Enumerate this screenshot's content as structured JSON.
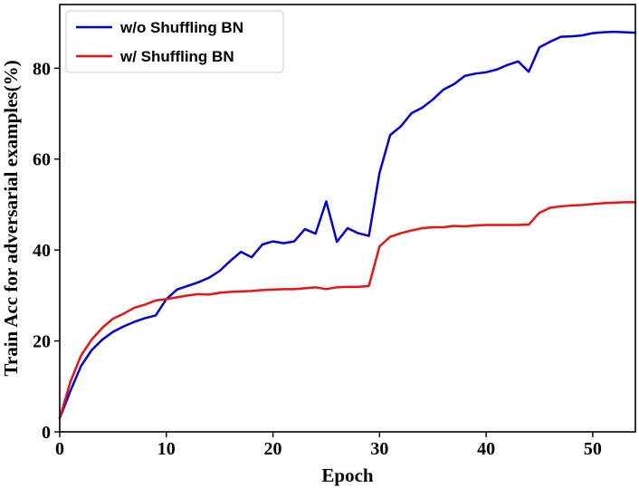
{
  "chart_data": {
    "type": "line",
    "title": "",
    "xlabel": "Epoch",
    "ylabel": "Train Acc for adversarial examples(%)",
    "xlim": [
      0,
      54
    ],
    "ylim": [
      0,
      94
    ],
    "xticks": [
      0,
      10,
      20,
      30,
      40,
      50
    ],
    "yticks": [
      0,
      20,
      40,
      60,
      80
    ],
    "xtick_labels": [
      "0",
      "10",
      "20",
      "30",
      "40",
      "50"
    ],
    "ytick_labels": [
      "0",
      "20",
      "40",
      "60",
      "80"
    ],
    "grid": false,
    "legend_position": "top-left",
    "x": [
      0,
      1,
      2,
      3,
      4,
      5,
      6,
      7,
      8,
      9,
      10,
      11,
      12,
      13,
      14,
      15,
      16,
      17,
      18,
      19,
      20,
      21,
      22,
      23,
      24,
      25,
      26,
      27,
      28,
      29,
      30,
      31,
      32,
      33,
      34,
      35,
      36,
      37,
      38,
      39,
      40,
      41,
      42,
      43,
      44,
      45,
      46,
      47,
      48,
      49,
      50,
      51,
      52,
      53,
      54
    ],
    "series": [
      {
        "name": "w/o Shuffling BN",
        "color": "#0000e6",
        "values": [
          3.0,
          9.0,
          14.5,
          18.0,
          20.3,
          22.0,
          23.2,
          24.2,
          25.0,
          25.6,
          29.2,
          31.3,
          32.1,
          32.9,
          33.9,
          35.4,
          37.6,
          39.6,
          38.4,
          41.2,
          41.9,
          41.5,
          41.9,
          44.6,
          43.6,
          50.7,
          41.8,
          44.8,
          43.7,
          43.1,
          57.0,
          65.3,
          67.2,
          70.1,
          71.3,
          73.1,
          75.3,
          76.5,
          78.3,
          78.8,
          79.1,
          79.7,
          80.7,
          81.5,
          79.2,
          84.6,
          85.8,
          86.9,
          87.0,
          87.2,
          87.7,
          87.9,
          88.0,
          87.9,
          87.8
        ]
      },
      {
        "name": "w/ Shuffling BN",
        "color": "#ee1111",
        "values": [
          3.0,
          11.0,
          16.8,
          20.3,
          22.9,
          24.9,
          26.0,
          27.3,
          28.0,
          28.9,
          29.2,
          29.6,
          30.0,
          30.3,
          30.2,
          30.6,
          30.8,
          30.9,
          31.0,
          31.2,
          31.3,
          31.4,
          31.4,
          31.6,
          31.8,
          31.4,
          31.8,
          31.9,
          31.9,
          32.1,
          40.8,
          42.9,
          43.7,
          44.3,
          44.8,
          45.0,
          45.0,
          45.3,
          45.2,
          45.4,
          45.5,
          45.5,
          45.5,
          45.5,
          45.6,
          48.2,
          49.3,
          49.6,
          49.8,
          49.9,
          50.1,
          50.3,
          50.4,
          50.5,
          50.5
        ]
      }
    ]
  }
}
